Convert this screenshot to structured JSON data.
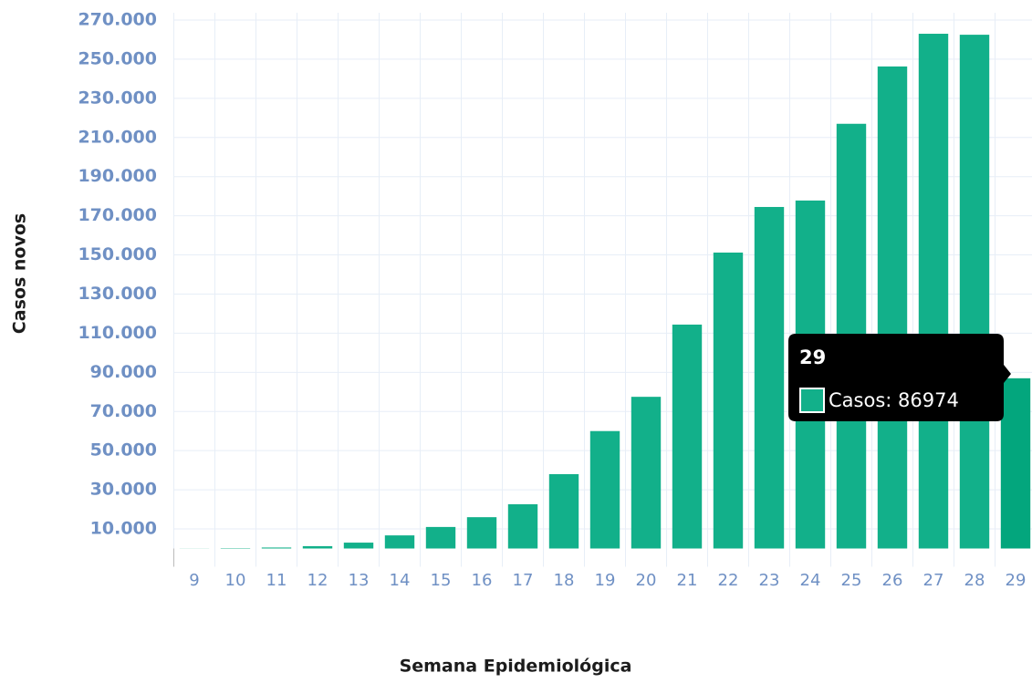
{
  "chart_data": {
    "type": "bar",
    "x_label": "Semana Epidemiológica",
    "y_label": "Casos novos",
    "categories": [
      "9",
      "10",
      "11",
      "12",
      "13",
      "14",
      "15",
      "16",
      "17",
      "18",
      "19",
      "20",
      "21",
      "22",
      "23",
      "24",
      "25",
      "26",
      "27",
      "28",
      "29"
    ],
    "values": [
      50,
      200,
      500,
      1200,
      3000,
      6700,
      11000,
      16000,
      22600,
      38000,
      60000,
      77500,
      114400,
      151200,
      174500,
      177800,
      217000,
      246300,
      263000,
      262500,
      86974
    ],
    "color": "#12b08a",
    "ylim": [
      0,
      270000
    ],
    "yticks": [
      {
        "value": 10000,
        "label": "10.000"
      },
      {
        "value": 30000,
        "label": "30.000"
      },
      {
        "value": 50000,
        "label": "50.000"
      },
      {
        "value": 70000,
        "label": "70.000"
      },
      {
        "value": 90000,
        "label": "90.000"
      },
      {
        "value": 110000,
        "label": "110.000"
      },
      {
        "value": 130000,
        "label": "130.000"
      },
      {
        "value": 150000,
        "label": "150.000"
      },
      {
        "value": 170000,
        "label": "170.000"
      },
      {
        "value": 190000,
        "label": "190.000"
      },
      {
        "value": 210000,
        "label": "210.000"
      },
      {
        "value": 230000,
        "label": "230.000"
      },
      {
        "value": 250000,
        "label": "250.000"
      },
      {
        "value": 270000,
        "label": "270.000"
      }
    ],
    "grid": true,
    "tooltip": {
      "title": "29",
      "label": "Casos: 86974",
      "color": "#03a67d"
    }
  }
}
